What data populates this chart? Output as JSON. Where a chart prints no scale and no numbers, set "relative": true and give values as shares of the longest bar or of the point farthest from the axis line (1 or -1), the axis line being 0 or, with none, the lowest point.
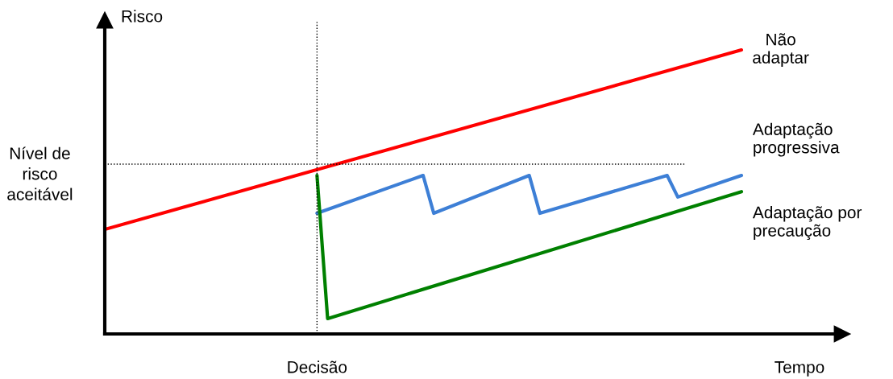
{
  "chart_data": {
    "type": "line",
    "relative": true,
    "xlabel": "Tempo",
    "ylabel": "Risco",
    "categories": [
      null,
      null,
      null,
      null,
      null,
      null,
      null,
      null,
      null,
      null,
      null,
      null,
      null,
      null,
      null,
      null,
      null,
      null,
      null,
      null,
      null,
      null,
      null,
      null,
      null,
      null,
      null,
      null,
      null,
      null,
      null,
      null,
      null,
      null,
      null,
      null,
      null,
      null,
      null,
      null,
      null,
      null,
      null,
      null,
      null,
      null,
      null,
      null,
      null,
      null,
      null,
      null,
      null,
      null,
      null,
      null,
      null,
      null,
      null,
      null,
      null
    ],
    "annotations": [
      "Decisão"
    ],
    "legend": false,
    "marker": "none",
    "line_style": "solid",
    "series": [
      {
        "name": "Não adaptar",
        "color": "#ff0000",
        "values": [
          0.368,
          null,
          null,
          null,
          null,
          null,
          null,
          null,
          null,
          null,
          null,
          null,
          null,
          null,
          null,
          null,
          null,
          null,
          null,
          null,
          null,
          null,
          null,
          null,
          null,
          null,
          null,
          null,
          null,
          null,
          null,
          null,
          null,
          null,
          null,
          null,
          null,
          null,
          null,
          null,
          null,
          null,
          null,
          null,
          null,
          null,
          null,
          null,
          null,
          null,
          null,
          null,
          null,
          null,
          null,
          null,
          null,
          null,
          null,
          null,
          1.0
        ]
      },
      {
        "name": "Adaptação progressiva",
        "color": "#3d7fd6",
        "values": [
          null,
          null,
          null,
          null,
          null,
          null,
          null,
          null,
          null,
          null,
          null,
          null,
          null,
          null,
          null,
          null,
          null,
          null,
          null,
          null,
          0.425,
          null,
          null,
          null,
          null,
          null,
          null,
          null,
          null,
          null,
          0.558,
          0.425,
          null,
          null,
          null,
          null,
          null,
          null,
          null,
          null,
          0.558,
          0.425,
          null,
          null,
          null,
          null,
          null,
          null,
          null,
          null,
          null,
          null,
          null,
          0.558,
          0.482,
          null,
          null,
          null,
          null,
          null,
          0.558
        ]
      },
      {
        "name": "Adaptação por precaução",
        "color": "#008000",
        "values": [
          null,
          null,
          null,
          null,
          null,
          null,
          null,
          null,
          null,
          null,
          null,
          null,
          null,
          null,
          null,
          null,
          null,
          null,
          null,
          null,
          0.558,
          0.054,
          null,
          null,
          null,
          null,
          null,
          null,
          null,
          null,
          null,
          null,
          null,
          null,
          null,
          null,
          null,
          null,
          null,
          null,
          null,
          null,
          null,
          null,
          null,
          null,
          null,
          null,
          null,
          null,
          null,
          null,
          null,
          null,
          null,
          null,
          null,
          null,
          null,
          null,
          0.501
        ]
      }
    ],
    "ref_lines": [
      {
        "axis": "y",
        "value": 0.598,
        "label": "Nível de risco aceitável",
        "color": "#000000",
        "line_style": "dotted"
      }
    ]
  }
}
